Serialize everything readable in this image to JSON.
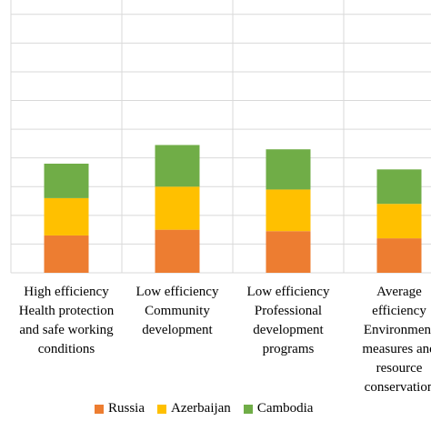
{
  "chart_data": {
    "type": "bar",
    "stacked": true,
    "categories": [
      "... efficiency ... and safe working conditions",
      "High efficiency Health protection and safe working conditions",
      "Low efficiency Community development",
      "Low efficiency Professional development programs",
      "Average efficiency Environment measures and resource conservation"
    ],
    "category_lines": [
      [
        "",
        "",
        "",
        ""
      ],
      [
        "High efficiency",
        "Health protection",
        "and safe working",
        "conditions"
      ],
      [
        "Low efficiency",
        "Community",
        "development"
      ],
      [
        "Low efficiency",
        "Professional",
        "development",
        "programs"
      ],
      [
        "Average",
        "efficiency",
        "Environment",
        "measures and",
        "resource",
        "conservation"
      ]
    ],
    "series": [
      {
        "name": "Russia",
        "color": "#ED7D31",
        "values": [
          null,
          1.3,
          1.5,
          1.45,
          1.2
        ]
      },
      {
        "name": "Azerbaijan",
        "color": "#FFC000",
        "values": [
          null,
          1.3,
          1.5,
          1.45,
          1.2
        ]
      },
      {
        "name": "Cambodia",
        "color": "#70AD47",
        "values": [
          null,
          1.2,
          1.45,
          1.4,
          1.2
        ]
      }
    ],
    "ylim": [
      0,
      9.5
    ],
    "grid": true,
    "legend_position": "bottom"
  },
  "legend": {
    "items": [
      {
        "label": "Russia",
        "color": "#ED7D31"
      },
      {
        "label": "Azerbaijan",
        "color": "#FFC000"
      },
      {
        "label": "Cambodia",
        "color": "#70AD47"
      }
    ]
  }
}
